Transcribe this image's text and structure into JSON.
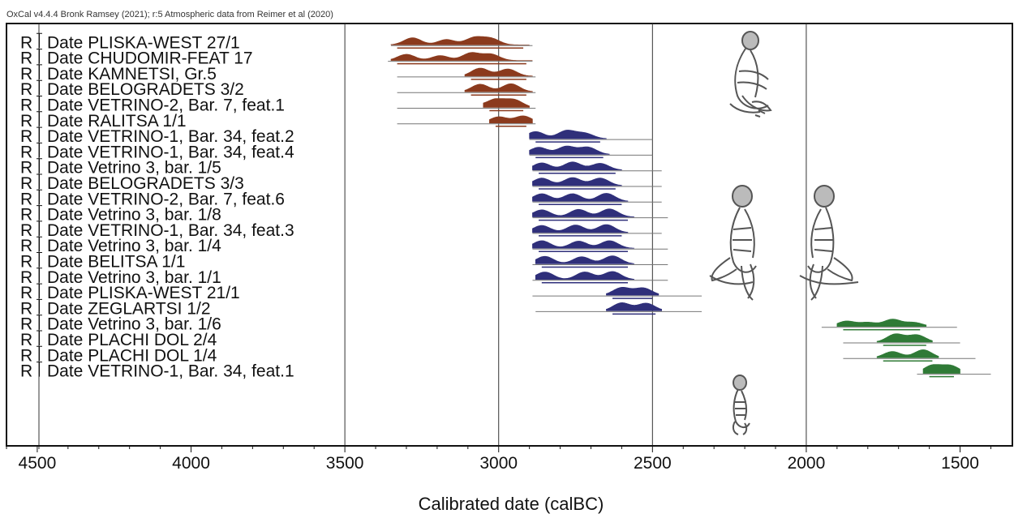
{
  "header": "OxCal v4.4.4 Bronk Ramsey (2021); r:5 Atmospheric data from Reimer et al (2020)",
  "chart_data": {
    "type": "area",
    "subtype": "radiocarbon calibrated date distributions",
    "xlabel": "Calibrated date (calBC)",
    "x_direction": "reversed",
    "xlim": [
      4600,
      1330
    ],
    "xticks": [
      "4500",
      "4000",
      "3500",
      "3000",
      "2500",
      "2000",
      "1500"
    ],
    "xtick_values": [
      4500,
      4000,
      3500,
      3000,
      2500,
      2000,
      1500
    ],
    "vertical_lines": [
      3500,
      3000,
      2500,
      2000
    ],
    "series": [
      {
        "label": "R_Date PLISKA-WEST  27/1",
        "group": "brown",
        "peaks": [
          [
            3280,
            0.8
          ],
          [
            3170,
            0.6
          ],
          [
            3080,
            0.8
          ],
          [
            3025,
            0.7
          ]
        ],
        "range_68": [
          3330,
          2920
        ],
        "range_95": [
          3350,
          2890
        ]
      },
      {
        "label": "R_Date CHUDOMIR-FEAT 17",
        "group": "brown",
        "peaks": [
          [
            3300,
            0.7
          ],
          [
            3190,
            0.55
          ],
          [
            3090,
            0.85
          ],
          [
            3025,
            0.7
          ]
        ],
        "range_68": [
          3330,
          2910
        ],
        "range_95": [
          3360,
          2890
        ]
      },
      {
        "label": "R_Date KAMNETSI, Gr.5",
        "group": "brown",
        "peaks": [
          [
            3300,
            0.25
          ],
          [
            3240,
            0.25
          ],
          [
            3060,
            0.9
          ],
          [
            2970,
            0.8
          ]
        ],
        "range_68": [
          3090,
          2910
        ],
        "range_95": [
          3330,
          2880
        ]
      },
      {
        "label": "R_Date BELOGRADETS  3/2",
        "group": "brown",
        "peaks": [
          [
            3250,
            0.2
          ],
          [
            3060,
            0.85
          ],
          [
            2960,
            0.9
          ]
        ],
        "range_68": [
          3090,
          2910
        ],
        "range_95": [
          3330,
          2880
        ]
      },
      {
        "label": "R_Date VETRINO-2, Bar. 7, feat.1",
        "group": "brown",
        "peaks": [
          [
            3080,
            0.3
          ],
          [
            3010,
            0.9
          ],
          [
            2950,
            0.85
          ]
        ],
        "range_68": [
          3030,
          2920
        ],
        "range_95": [
          3330,
          2880
        ]
      },
      {
        "label": "R_Date RALITSA  1/1",
        "group": "brown",
        "peaks": [
          [
            3000,
            0.7
          ],
          [
            2920,
            0.8
          ]
        ],
        "range_68": [
          3010,
          2910
        ],
        "range_95": [
          3330,
          2880
        ]
      },
      {
        "label": "R_Date VETRINO-1, Bar. 34, feat.2",
        "group": "blue",
        "peaks": [
          [
            2880,
            0.8
          ],
          [
            2780,
            0.9
          ],
          [
            2720,
            0.6
          ]
        ],
        "range_68": [
          2880,
          2670
        ],
        "range_95": [
          2900,
          2500
        ]
      },
      {
        "label": "R_Date VETRINO-1, Bar. 34, feat.4",
        "group": "blue",
        "peaks": [
          [
            2870,
            0.8
          ],
          [
            2780,
            0.9
          ],
          [
            2710,
            0.8
          ]
        ],
        "range_68": [
          2880,
          2660
        ],
        "range_95": [
          2900,
          2500
        ]
      },
      {
        "label": "R_Date Vetrino 3, bar. 1/5",
        "group": "blue",
        "peaks": [
          [
            2860,
            0.8
          ],
          [
            2760,
            0.9
          ],
          [
            2670,
            0.75
          ]
        ],
        "range_68": [
          2870,
          2620
        ],
        "range_95": [
          2890,
          2470
        ]
      },
      {
        "label": "R_Date BELOGRADETS  3/3",
        "group": "blue",
        "peaks": [
          [
            2860,
            0.85
          ],
          [
            2760,
            0.9
          ],
          [
            2670,
            0.85
          ]
        ],
        "range_68": [
          2870,
          2620
        ],
        "range_95": [
          2890,
          2470
        ]
      },
      {
        "label": "R_Date VETRINO-2, Bar. 7, feat.6",
        "group": "blue",
        "peaks": [
          [
            2860,
            0.85
          ],
          [
            2760,
            0.85
          ],
          [
            2650,
            0.9
          ]
        ],
        "range_68": [
          2870,
          2600
        ],
        "range_95": [
          2890,
          2470
        ]
      },
      {
        "label": "R_Date Vetrino 3, bar. 1/8",
        "group": "blue",
        "peaks": [
          [
            2860,
            0.8
          ],
          [
            2740,
            0.85
          ],
          [
            2640,
            0.9
          ]
        ],
        "range_68": [
          2870,
          2580
        ],
        "range_95": [
          2890,
          2450
        ]
      },
      {
        "label": "R_Date VETRINO-1, Bar. 34, feat.3",
        "group": "blue",
        "peaks": [
          [
            2860,
            0.8
          ],
          [
            2750,
            0.85
          ],
          [
            2650,
            0.9
          ]
        ],
        "range_68": [
          2870,
          2600
        ],
        "range_95": [
          2890,
          2470
        ]
      },
      {
        "label": "R_Date Vetrino 3, bar. 1/4",
        "group": "blue",
        "peaks": [
          [
            2860,
            0.85
          ],
          [
            2740,
            0.8
          ],
          [
            2640,
            0.85
          ]
        ],
        "range_68": [
          2870,
          2580
        ],
        "range_95": [
          2890,
          2450
        ]
      },
      {
        "label": "R_Date BELITSA  1/1",
        "group": "blue",
        "peaks": [
          [
            2850,
            0.85
          ],
          [
            2730,
            0.8
          ],
          [
            2630,
            0.9
          ]
        ],
        "range_68": [
          2860,
          2580
        ],
        "range_95": [
          2890,
          2450
        ]
      },
      {
        "label": "R_Date Vetrino 3, bar. 1/1",
        "group": "blue",
        "peaks": [
          [
            2850,
            0.85
          ],
          [
            2720,
            0.85
          ],
          [
            2630,
            0.9
          ]
        ],
        "range_68": [
          2860,
          2580
        ],
        "range_95": [
          2890,
          2450
        ]
      },
      {
        "label": "R_Date PLISKA-WEST  21/1",
        "group": "blue",
        "peaks": [
          [
            2840,
            0.3
          ],
          [
            2730,
            0.3
          ],
          [
            2600,
            0.85
          ],
          [
            2530,
            0.8
          ]
        ],
        "range_68": [
          2630,
          2500
        ],
        "range_95": [
          2890,
          2340
        ]
      },
      {
        "label": "R_Date ZEGLARTSI  1/2",
        "group": "blue",
        "peaks": [
          [
            2840,
            0.25
          ],
          [
            2600,
            0.9
          ],
          [
            2520,
            0.85
          ]
        ],
        "range_68": [
          2630,
          2490
        ],
        "range_95": [
          2880,
          2340
        ]
      },
      {
        "label": "R_Date Vetrino 3, bar. 1/6",
        "group": "green",
        "peaks": [
          [
            1870,
            0.6
          ],
          [
            1800,
            0.45
          ],
          [
            1720,
            0.8
          ],
          [
            1650,
            0.45
          ]
        ],
        "range_68": [
          1880,
          1630
        ],
        "range_95": [
          1950,
          1510
        ]
      },
      {
        "label": "R_Date PLACHI DOL 2/4",
        "group": "green",
        "peaks": [
          [
            1710,
            0.9
          ],
          [
            1640,
            0.8
          ]
        ],
        "range_68": [
          1750,
          1610
        ],
        "range_95": [
          1880,
          1500
        ]
      },
      {
        "label": "R_Date PLACHI DOL 1/4",
        "group": "green",
        "peaks": [
          [
            1720,
            0.7
          ],
          [
            1620,
            0.9
          ]
        ],
        "range_68": [
          1750,
          1590
        ],
        "range_95": [
          1880,
          1450
        ]
      },
      {
        "label": "R_Date VETRINO-1, Bar. 34, feat.1",
        "group": "green",
        "peaks": [
          [
            1590,
            0.9
          ],
          [
            1530,
            0.85
          ]
        ],
        "range_68": [
          1600,
          1520
        ],
        "range_95": [
          1640,
          1400
        ]
      }
    ]
  },
  "colors": {
    "brown": "#8b3a1d",
    "blue": "#2f2f7a",
    "green": "#2f7a36",
    "axis": "#111111",
    "grid": "#333333"
  },
  "skeleton_icons": [
    "crouched-skeleton-icon"
  ]
}
